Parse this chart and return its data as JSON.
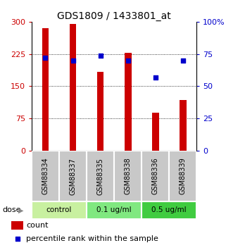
{
  "title": "GDS1809 / 1433801_at",
  "samples": [
    "GSM88334",
    "GSM88337",
    "GSM88335",
    "GSM88338",
    "GSM88336",
    "GSM88339"
  ],
  "counts": [
    285,
    295,
    183,
    228,
    88,
    118
  ],
  "percentiles": [
    72,
    70,
    74,
    70,
    57,
    70
  ],
  "groups": [
    {
      "label": "control",
      "indices": [
        0,
        1
      ],
      "color": "#c8f0a0"
    },
    {
      "label": "0.1 ug/ml",
      "indices": [
        2,
        3
      ],
      "color": "#80e880"
    },
    {
      "label": "0.5 ug/ml",
      "indices": [
        4,
        5
      ],
      "color": "#40cc40"
    }
  ],
  "bar_color": "#cc0000",
  "dot_color": "#0000cc",
  "left_ylim": [
    0,
    300
  ],
  "right_ylim": [
    0,
    100
  ],
  "left_yticks": [
    0,
    75,
    150,
    225,
    300
  ],
  "left_yticklabels": [
    "0",
    "75",
    "150",
    "225",
    "300"
  ],
  "right_yticks": [
    0,
    25,
    50,
    75,
    100
  ],
  "right_yticklabels": [
    "0",
    "25",
    "50",
    "75",
    "100%"
  ],
  "left_tick_color": "#cc0000",
  "right_tick_color": "#0000cc",
  "xlabel_area_color": "#c8c8c8",
  "dose_label": "dose",
  "legend_count_label": "count",
  "legend_percentile_label": "percentile rank within the sample",
  "bar_width": 0.25
}
